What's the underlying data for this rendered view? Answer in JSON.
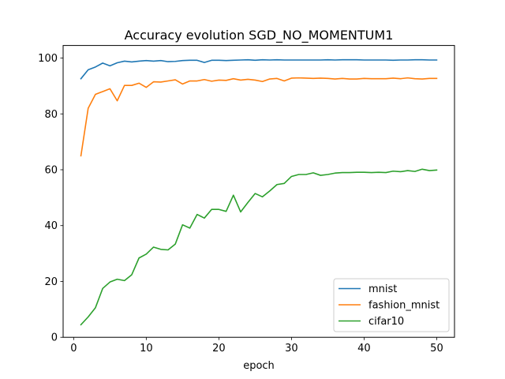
{
  "chart_data": {
    "type": "line",
    "title": "Accuracy evolution SGD_NO_MOMENTUM1",
    "xlabel": "epoch",
    "ylabel": "",
    "xlim": [
      -1.45,
      52.45
    ],
    "ylim": [
      0,
      104.5
    ],
    "xticks": [
      0,
      10,
      20,
      30,
      40,
      50
    ],
    "yticks": [
      0,
      20,
      40,
      60,
      80,
      100
    ],
    "grid": false,
    "legend_position": "lower-right",
    "x": [
      1,
      2,
      3,
      4,
      5,
      6,
      7,
      8,
      9,
      10,
      11,
      12,
      13,
      14,
      15,
      16,
      17,
      18,
      19,
      20,
      21,
      22,
      23,
      24,
      25,
      26,
      27,
      28,
      29,
      30,
      31,
      32,
      33,
      34,
      35,
      36,
      37,
      38,
      39,
      40,
      41,
      42,
      43,
      44,
      45,
      46,
      47,
      48,
      49,
      50
    ],
    "series": [
      {
        "name": "mnist",
        "color": "#1f77b4",
        "values": [
          92.6,
          95.8,
          96.8,
          98.2,
          97.2,
          98.3,
          98.9,
          98.6,
          98.9,
          99.1,
          98.9,
          99.1,
          98.7,
          98.8,
          99.1,
          99.2,
          99.2,
          98.4,
          99.2,
          99.2,
          99.1,
          99.2,
          99.3,
          99.4,
          99.2,
          99.4,
          99.3,
          99.4,
          99.3,
          99.3,
          99.3,
          99.3,
          99.3,
          99.3,
          99.4,
          99.3,
          99.4,
          99.4,
          99.4,
          99.3,
          99.3,
          99.3,
          99.3,
          99.2,
          99.3,
          99.3,
          99.4,
          99.4,
          99.3,
          99.3
        ]
      },
      {
        "name": "fashion_mnist",
        "color": "#ff7f0e",
        "values": [
          65.0,
          82.0,
          87.0,
          88.0,
          89.0,
          84.7,
          90.2,
          90.2,
          91.0,
          89.5,
          91.5,
          91.4,
          91.8,
          92.2,
          90.7,
          91.8,
          91.8,
          92.3,
          91.7,
          92.1,
          92.0,
          92.6,
          92.1,
          92.4,
          92.1,
          91.6,
          92.5,
          92.7,
          91.8,
          92.8,
          92.9,
          92.8,
          92.7,
          92.8,
          92.7,
          92.5,
          92.7,
          92.5,
          92.5,
          92.7,
          92.6,
          92.6,
          92.6,
          92.8,
          92.6,
          92.9,
          92.6,
          92.5,
          92.7,
          92.7
        ]
      },
      {
        "name": "cifar10",
        "color": "#2ca02c",
        "values": [
          4.5,
          7.3,
          10.6,
          17.5,
          19.8,
          20.8,
          20.3,
          22.4,
          28.4,
          29.8,
          32.3,
          31.5,
          31.3,
          33.4,
          40.3,
          39.1,
          44.0,
          42.7,
          45.8,
          45.8,
          45.1,
          50.9,
          44.9,
          48.3,
          51.5,
          50.3,
          52.4,
          54.7,
          55.1,
          57.6,
          58.3,
          58.3,
          58.9,
          58.0,
          58.3,
          58.8,
          59.0,
          59.0,
          59.1,
          59.1,
          59.0,
          59.1,
          59.0,
          59.5,
          59.3,
          59.7,
          59.4,
          60.2,
          59.7,
          59.9
        ]
      }
    ]
  }
}
